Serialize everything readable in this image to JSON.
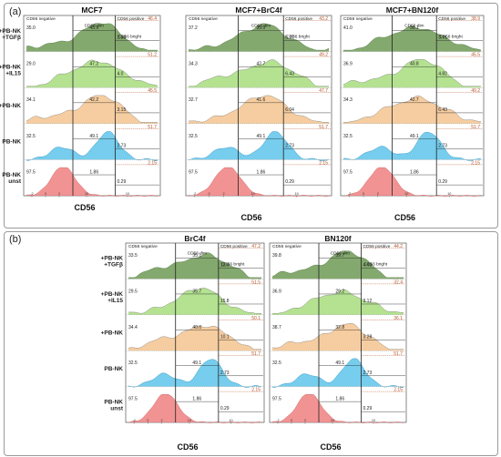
{
  "figure": {
    "panel_a_label": "(a)",
    "panel_b_label": "(b)",
    "x_axis_label": "CD56",
    "gate_labels": {
      "negative": "CD56 negative",
      "positive": "CD56 positive",
      "dim": "CD56 dim",
      "bright": "CD56 bright"
    },
    "tick_labels": [
      "-2",
      "0",
      "2",
      "10",
      "10"
    ],
    "row_labels": [
      [
        "+PB-NK",
        "+TGFβ"
      ],
      [
        "+PB-NK",
        "+IL15"
      ],
      [
        "+PB-NK"
      ],
      [
        "PB-NK"
      ],
      [
        "PB-NK",
        "unst"
      ]
    ],
    "colors": {
      "tgfb": "#6f9a55",
      "il15": "#a7dd7e",
      "pbnk_plus": "#f5c48f",
      "pbnk": "#5ec4ea",
      "unst": "#f08080",
      "unst_label": "#c0504d",
      "positive_text": "#b5542a"
    }
  },
  "chart_data": [
    {
      "type": "area",
      "title": "MCF7",
      "xlabel": "CD56",
      "rows": [
        {
          "row": "+PB-NK +TGFβ",
          "neg": "35.0",
          "pos": "46.4",
          "dim": "43.9",
          "bright": "2.38"
        },
        {
          "row": "+PB-NK +IL15",
          "neg": "29.0",
          "pos": "51.2",
          "dim": "47.2",
          "bright": "4.0"
        },
        {
          "row": "+PB-NK",
          "neg": "34.1",
          "pos": "45.5",
          "dim": "42.2",
          "bright": "3.15"
        },
        {
          "row": "PB-NK",
          "neg": "32.5",
          "pos": "51.7",
          "dim": "49.1",
          "bright": "2.73"
        },
        {
          "row": "PB-NK unst",
          "neg": "97.5",
          "pos": "2.15",
          "dim": "1.86",
          "bright": "0.29"
        }
      ]
    },
    {
      "type": "area",
      "title": "MCF7+BrC4f",
      "xlabel": "CD56",
      "rows": [
        {
          "row": "+PB-NK +TGFβ",
          "neg": "37.2",
          "pos": "43.2",
          "dim": "35.0",
          "bright": "5.22"
        },
        {
          "row": "+PB-NK +IL15",
          "neg": "34.3",
          "pos": "49.2",
          "dim": "42.7",
          "bright": "6.43"
        },
        {
          "row": "+PB-NK",
          "neg": "32.7",
          "pos": "47.7",
          "dim": "41.6",
          "bright": "6.04"
        },
        {
          "row": "PB-NK",
          "neg": "32.5",
          "pos": "51.7",
          "dim": "49.1",
          "bright": "2.73"
        },
        {
          "row": "PB-NK unst",
          "neg": "97.5",
          "pos": "2.15",
          "dim": "1.86",
          "bright": "0.29"
        }
      ]
    },
    {
      "type": "area",
      "title": "MCF7+BN120f",
      "xlabel": "CD56",
      "rows": [
        {
          "row": "+PB-NK +TGFβ",
          "neg": "41.0",
          "pos": "38.9",
          "dim": "35.1",
          "bright": "3.71"
        },
        {
          "row": "+PB-NK +IL15",
          "neg": "36.9",
          "pos": "45.5",
          "dim": "40.8",
          "bright": "4.82"
        },
        {
          "row": "+PB-NK",
          "neg": "34.3",
          "pos": "49.2",
          "dim": "42.7",
          "bright": "6.43"
        },
        {
          "row": "PB-NK",
          "neg": "32.5",
          "pos": "51.7",
          "dim": "49.1",
          "bright": "2.73"
        },
        {
          "row": "PB-NK unst",
          "neg": "97.5",
          "pos": "2.15",
          "dim": "1.86",
          "bright": "0.29"
        }
      ]
    },
    {
      "type": "area",
      "title": "BrC4f",
      "xlabel": "CD56",
      "rows": [
        {
          "row": "+PB-NK +TGFβ",
          "neg": "33.5",
          "pos": "47.2",
          "dim": "35.1",
          "bright": "12.0"
        },
        {
          "row": "+PB-NK +IL15",
          "neg": "29.5",
          "pos": "51.5",
          "dim": "35.7",
          "bright": "15.8"
        },
        {
          "row": "+PB-NK",
          "neg": "34.4",
          "pos": "50.1",
          "dim": "40.0",
          "bright": "10.1"
        },
        {
          "row": "PB-NK",
          "neg": "32.5",
          "pos": "51.7",
          "dim": "49.1",
          "bright": "2.73"
        },
        {
          "row": "PB-NK unst",
          "neg": "97.5",
          "pos": "2.15",
          "dim": "1.86",
          "bright": "0.29"
        }
      ]
    },
    {
      "type": "area",
      "title": "BN120f",
      "xlabel": "CD56",
      "rows": [
        {
          "row": "+PB-NK +TGFβ",
          "neg": "39.8",
          "pos": "44.2",
          "dim": "39.7",
          "bright": "4.43"
        },
        {
          "row": "+PB-NK +IL15",
          "neg": "36.9",
          "pos": "32.4",
          "dim": "29.2",
          "bright": "3.12"
        },
        {
          "row": "+PB-NK",
          "neg": "38.7",
          "pos": "36.1",
          "dim": "32.8",
          "bright": "3.28"
        },
        {
          "row": "PB-NK",
          "neg": "32.5",
          "pos": "51.7",
          "dim": "49.1",
          "bright": "2.73"
        },
        {
          "row": "PB-NK unst",
          "neg": "97.5",
          "pos": "2.15",
          "dim": "1.86",
          "bright": "0.29"
        }
      ]
    }
  ]
}
